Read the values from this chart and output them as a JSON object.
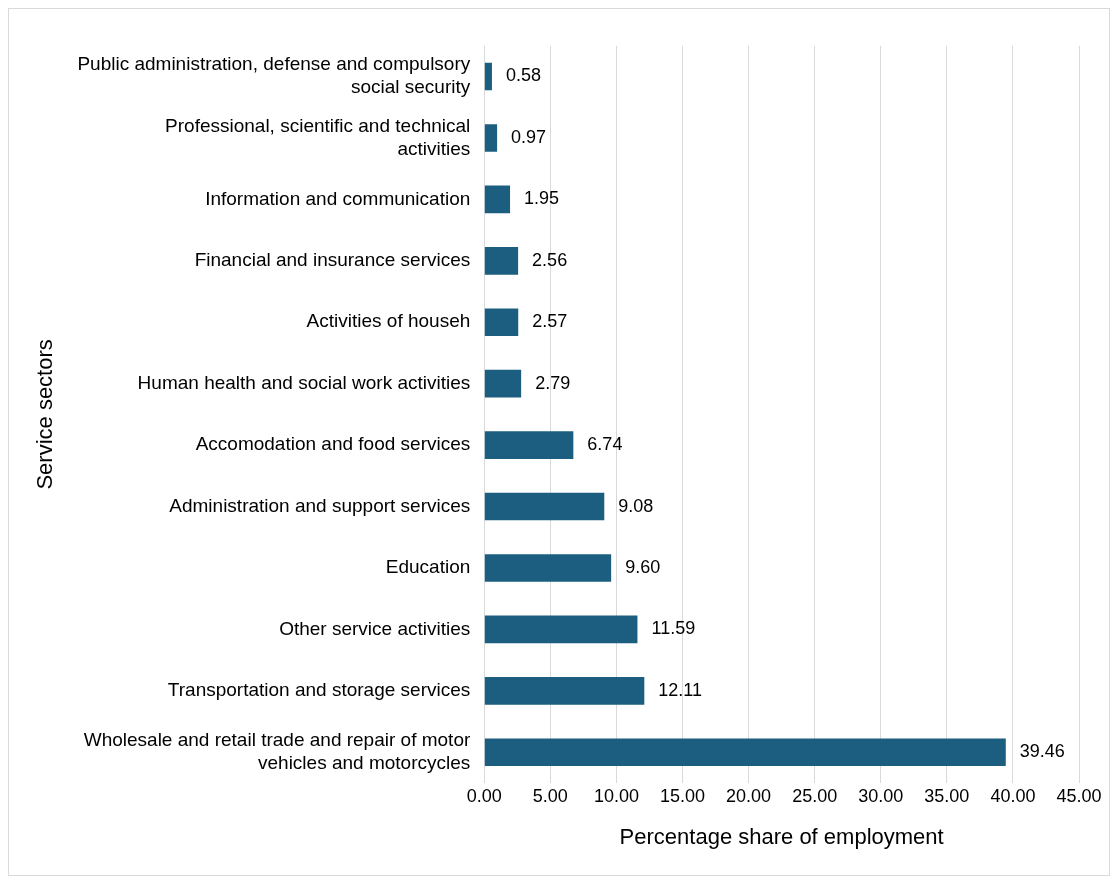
{
  "chart_data": {
    "type": "bar",
    "orientation": "horizontal",
    "xlabel": "Percentage share of employment",
    "ylabel": "Service sectors",
    "categories": [
      "Public administration, defense and compulsory social security",
      "Professional, scientific and technical activities",
      "Information and communication",
      "Financial and insurance services",
      "Activities of househ",
      "Human health and social work activities",
      "Accomodation and food services",
      "Administration and support services",
      "Education",
      "Other service activities",
      "Transportation and storage services",
      "Wholesale and retail trade and repair of motor vehicles and motorcycles"
    ],
    "values": [
      0.58,
      0.97,
      1.95,
      2.56,
      2.57,
      2.79,
      6.74,
      9.08,
      9.6,
      11.59,
      12.11,
      39.46
    ],
    "value_labels": [
      "0.58",
      "0.97",
      "1.95",
      "2.56",
      "2.57",
      "2.79",
      "6.74",
      "9.08",
      "9.60",
      "11.59",
      "12.11",
      "39.46"
    ],
    "color": "#1b5e80",
    "xlim": [
      0,
      45
    ],
    "xticks": [
      {
        "value": 0,
        "label": "0.00"
      },
      {
        "value": 5,
        "label": "5.00"
      },
      {
        "value": 10,
        "label": "10.00"
      },
      {
        "value": 15,
        "label": "15.00"
      },
      {
        "value": 20,
        "label": "20.00"
      },
      {
        "value": 25,
        "label": "25.00"
      },
      {
        "value": 30,
        "label": "30.00"
      },
      {
        "value": 35,
        "label": "35.00"
      },
      {
        "value": 40,
        "label": "40.00"
      },
      {
        "value": 45,
        "label": "45.00"
      }
    ],
    "grid": "x",
    "legend": false
  }
}
